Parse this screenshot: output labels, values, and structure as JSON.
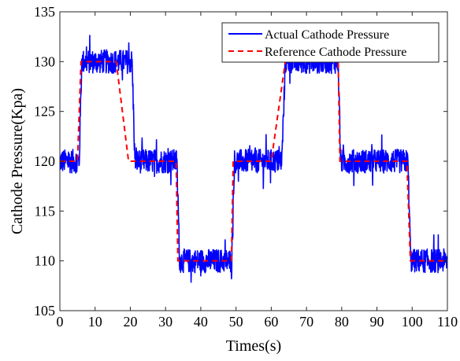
{
  "chart_data": {
    "type": "line",
    "title": "",
    "xlabel": "Times(s)",
    "ylabel": "Cathode Pressure(Kpa)",
    "xlim": [
      0,
      110
    ],
    "ylim": [
      105,
      135
    ],
    "xticks": [
      0,
      10,
      20,
      30,
      40,
      50,
      60,
      70,
      80,
      90,
      100,
      110
    ],
    "yticks": [
      105,
      110,
      115,
      120,
      125,
      130,
      135
    ],
    "grid": false,
    "legend_position": "top-right",
    "series": [
      {
        "name": "Actual Cathode Pressure",
        "color": "#0000ff",
        "style": "solid",
        "noise_amplitude": 1.2,
        "x": [
          0,
          5.5,
          6.2,
          20.5,
          21.3,
          33.2,
          34.0,
          48.8,
          49.5,
          63.0,
          64.0,
          79.0,
          79.7,
          98.8,
          99.6,
          110
        ],
        "y": [
          120,
          120,
          130,
          130,
          120,
          120,
          110,
          110,
          120,
          120,
          130,
          130,
          120,
          120,
          110,
          110
        ]
      },
      {
        "name": "Reference Cathode Pressure",
        "color": "#ff0000",
        "style": "dashed",
        "x": [
          0,
          5,
          6,
          16,
          19.5,
          33,
          33.5,
          48.7,
          49.2,
          60,
          64,
          79,
          79.5,
          98.5,
          99.5,
          110
        ],
        "y": [
          120,
          120,
          130,
          130,
          120,
          120,
          110,
          110,
          120,
          120,
          130,
          130,
          120,
          120,
          110,
          110
        ]
      }
    ]
  }
}
